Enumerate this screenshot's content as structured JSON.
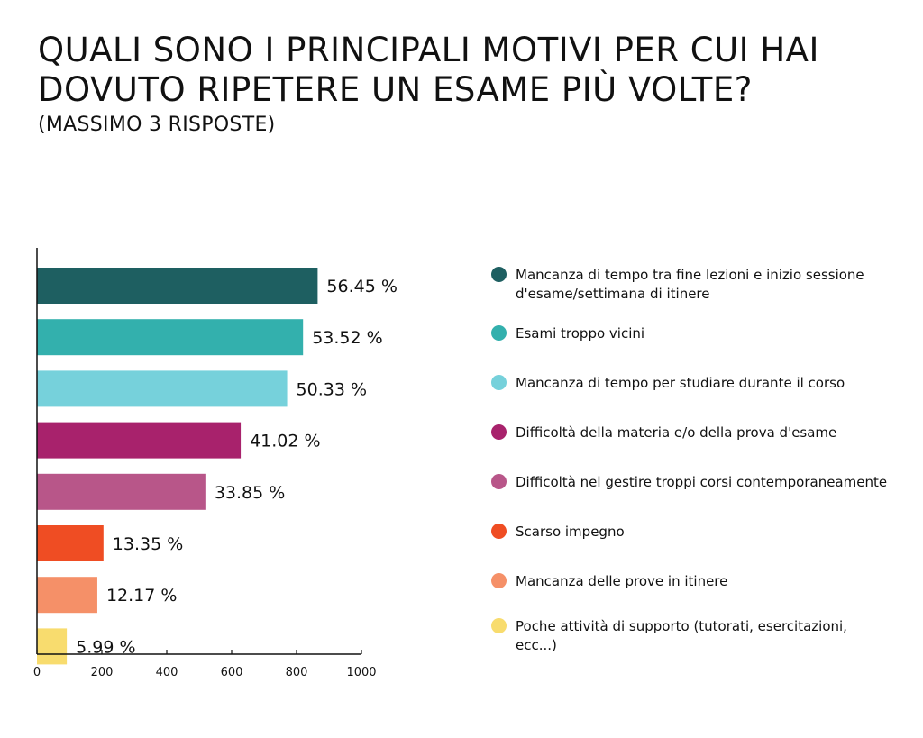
{
  "title": "QUALI SONO I PRINCIPALI MOTIVI PER CUI HAI DOVUTO RIPETERE UN ESAME PIÙ VOLTE?",
  "subtitle": "(MASSIMO 3 RISPOSTE)",
  "chart_data": {
    "type": "bar",
    "orientation": "horizontal",
    "xlim": [
      0,
      1000
    ],
    "x_ticks": [
      "0",
      "200",
      "400",
      "600",
      "800",
      "1000"
    ],
    "grid": false,
    "legend_position": "right",
    "categories": [
      "Mancanza di tempo tra fine lezioni e inizio sessione d'esame/settimana di itinere",
      "Esami troppo vicini",
      "Mancanza di tempo per studiare durante il corso",
      "Difficoltà della materia e/o della prova d'esame",
      "Difficoltà nel gestire troppi corsi contemporaneamente",
      "Scarso impegno",
      "Mancanza delle prove in itinere",
      "Poche attività di supporto (tutorati, esercitazioni, ecc...)"
    ],
    "values": [
      865,
      820,
      771,
      628,
      519,
      205,
      186,
      92
    ],
    "percent_labels": [
      "56.45 %",
      "53.52 %",
      "50.33 %",
      "41.02 %",
      "33.85 %",
      "13.35 %",
      "12.17 %",
      "5.99 %"
    ],
    "colors": [
      "#1e5f61",
      "#33b0ad",
      "#76d1db",
      "#a8226c",
      "#b85689",
      "#ef4d23",
      "#f59068",
      "#f8dc6e"
    ]
  }
}
